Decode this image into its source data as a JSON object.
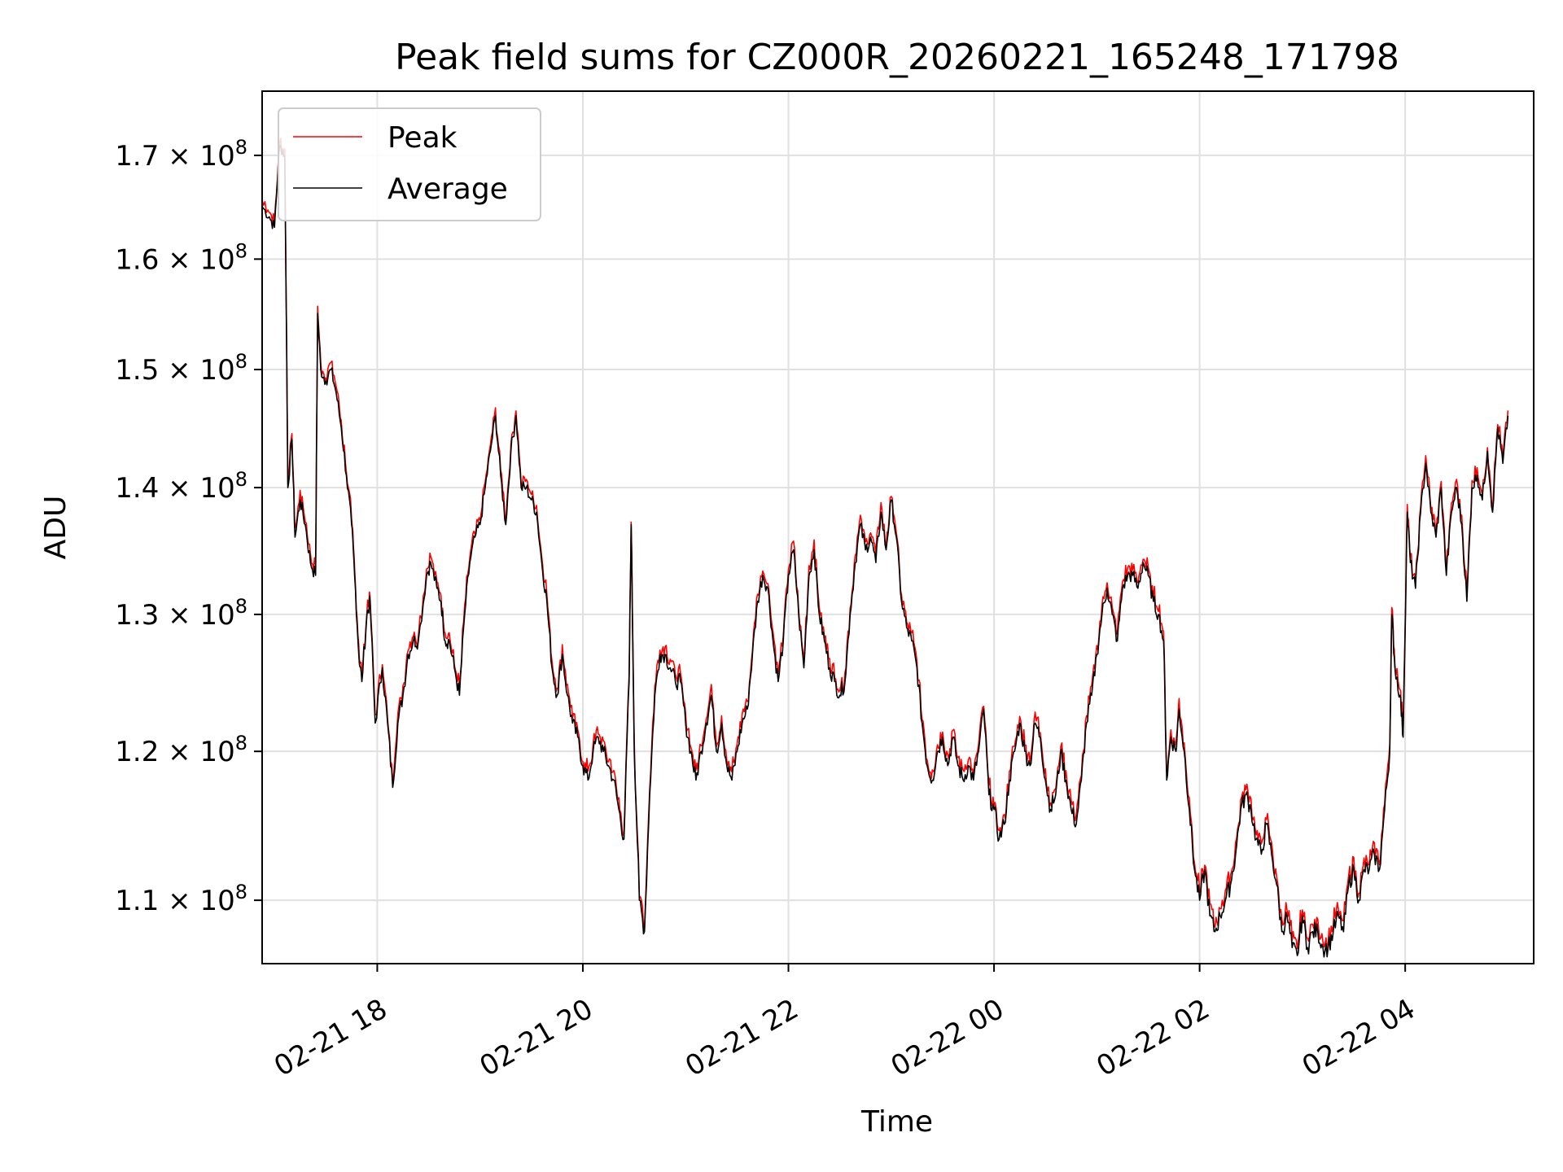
{
  "chart_data": {
    "type": "line",
    "title": "Peak field sums for CZ000R_20260221_165248_171798",
    "xlabel": "Time",
    "ylabel": "ADU",
    "yscale": "log",
    "ylim": [
      106000000,
      176500000
    ],
    "xlim_hours": [
      16.88,
      29.25
    ],
    "grid": true,
    "legend_position": "upper-left",
    "x_ticks": [
      {
        "hour": 18,
        "label": "02-21 18"
      },
      {
        "hour": 20,
        "label": "02-21 20"
      },
      {
        "hour": 22,
        "label": "02-21 22"
      },
      {
        "hour": 24,
        "label": "02-22 00"
      },
      {
        "hour": 26,
        "label": "02-22 02"
      },
      {
        "hour": 28,
        "label": "02-22 04"
      }
    ],
    "y_ticks": [
      {
        "value": 110000000,
        "mantissa": "1.1",
        "exp": "8"
      },
      {
        "value": 120000000,
        "mantissa": "1.2",
        "exp": "8"
      },
      {
        "value": 130000000,
        "mantissa": "1.3",
        "exp": "8"
      },
      {
        "value": 140000000,
        "mantissa": "1.4",
        "exp": "8"
      },
      {
        "value": 150000000,
        "mantissa": "1.5",
        "exp": "8"
      },
      {
        "value": 160000000,
        "mantissa": "1.6",
        "exp": "8"
      },
      {
        "value": 170000000,
        "mantissa": "1.7",
        "exp": "8"
      }
    ],
    "series": [
      {
        "name": "Peak",
        "color": "#ff0000",
        "offset": 0.5
      },
      {
        "name": "Average",
        "color": "#000000",
        "offset": 0
      }
    ],
    "average_points_hours_mega": [
      [
        16.88,
        165
      ],
      [
        16.95,
        164
      ],
      [
        17.0,
        163
      ],
      [
        17.05,
        171
      ],
      [
        17.1,
        170
      ],
      [
        17.13,
        140
      ],
      [
        17.17,
        144
      ],
      [
        17.2,
        136
      ],
      [
        17.25,
        139
      ],
      [
        17.3,
        137
      ],
      [
        17.35,
        134
      ],
      [
        17.4,
        133
      ],
      [
        17.42,
        155
      ],
      [
        17.45,
        150
      ],
      [
        17.5,
        149
      ],
      [
        17.55,
        150
      ],
      [
        17.6,
        148
      ],
      [
        17.65,
        145
      ],
      [
        17.7,
        141
      ],
      [
        17.75,
        137
      ],
      [
        17.78,
        133
      ],
      [
        17.82,
        127
      ],
      [
        17.85,
        125
      ],
      [
        17.9,
        130
      ],
      [
        17.93,
        131
      ],
      [
        17.98,
        122
      ],
      [
        18.05,
        126
      ],
      [
        18.1,
        122
      ],
      [
        18.15,
        117.5
      ],
      [
        18.2,
        122
      ],
      [
        18.25,
        124
      ],
      [
        18.3,
        127
      ],
      [
        18.35,
        128
      ],
      [
        18.4,
        128
      ],
      [
        18.48,
        133
      ],
      [
        18.52,
        134
      ],
      [
        18.58,
        132
      ],
      [
        18.62,
        131
      ],
      [
        18.66,
        128
      ],
      [
        18.7,
        128
      ],
      [
        18.75,
        126
      ],
      [
        18.8,
        124
      ],
      [
        18.85,
        130
      ],
      [
        18.9,
        134
      ],
      [
        18.95,
        136
      ],
      [
        19.0,
        137
      ],
      [
        19.05,
        140
      ],
      [
        19.1,
        143
      ],
      [
        19.15,
        146
      ],
      [
        19.2,
        141
      ],
      [
        19.25,
        137
      ],
      [
        19.3,
        143
      ],
      [
        19.35,
        146
      ],
      [
        19.4,
        140
      ],
      [
        19.45,
        140
      ],
      [
        19.5,
        139
      ],
      [
        19.55,
        138
      ],
      [
        19.6,
        134
      ],
      [
        19.65,
        131
      ],
      [
        19.7,
        126
      ],
      [
        19.75,
        124
      ],
      [
        19.8,
        127
      ],
      [
        19.85,
        124
      ],
      [
        19.9,
        122
      ],
      [
        19.95,
        121
      ],
      [
        20.0,
        119
      ],
      [
        20.05,
        118
      ],
      [
        20.1,
        120
      ],
      [
        20.15,
        121
      ],
      [
        20.2,
        120
      ],
      [
        20.25,
        119
      ],
      [
        20.3,
        118
      ],
      [
        20.35,
        116
      ],
      [
        20.4,
        114
      ],
      [
        20.45,
        125
      ],
      [
        20.47,
        137
      ],
      [
        20.5,
        120
      ],
      [
        20.55,
        110
      ],
      [
        20.6,
        108
      ],
      [
        20.65,
        117
      ],
      [
        20.7,
        124
      ],
      [
        20.75,
        127
      ],
      [
        20.8,
        127
      ],
      [
        20.85,
        126
      ],
      [
        20.9,
        125
      ],
      [
        20.95,
        125
      ],
      [
        21.0,
        122
      ],
      [
        21.05,
        120
      ],
      [
        21.1,
        118
      ],
      [
        21.15,
        120
      ],
      [
        21.2,
        122
      ],
      [
        21.25,
        124
      ],
      [
        21.3,
        120
      ],
      [
        21.35,
        122
      ],
      [
        21.4,
        119
      ],
      [
        21.45,
        118
      ],
      [
        21.5,
        120
      ],
      [
        21.55,
        122
      ],
      [
        21.6,
        123
      ],
      [
        21.65,
        127
      ],
      [
        21.7,
        131
      ],
      [
        21.75,
        133
      ],
      [
        21.8,
        132
      ],
      [
        21.85,
        128
      ],
      [
        21.9,
        125
      ],
      [
        21.95,
        128
      ],
      [
        22.0,
        133
      ],
      [
        22.05,
        135
      ],
      [
        22.1,
        130
      ],
      [
        22.15,
        126
      ],
      [
        22.2,
        133
      ],
      [
        22.25,
        135
      ],
      [
        22.3,
        130
      ],
      [
        22.35,
        128
      ],
      [
        22.4,
        126
      ],
      [
        22.45,
        125
      ],
      [
        22.5,
        124
      ],
      [
        22.55,
        125
      ],
      [
        22.6,
        130
      ],
      [
        22.65,
        134
      ],
      [
        22.7,
        137
      ],
      [
        22.75,
        135
      ],
      [
        22.8,
        136
      ],
      [
        22.85,
        134
      ],
      [
        22.9,
        138
      ],
      [
        22.95,
        135
      ],
      [
        23.0,
        139
      ],
      [
        23.05,
        136
      ],
      [
        23.1,
        131
      ],
      [
        23.15,
        129
      ],
      [
        23.2,
        128
      ],
      [
        23.25,
        126
      ],
      [
        23.3,
        122
      ],
      [
        23.35,
        119
      ],
      [
        23.4,
        118
      ],
      [
        23.45,
        120
      ],
      [
        23.5,
        121
      ],
      [
        23.55,
        119
      ],
      [
        23.6,
        121
      ],
      [
        23.65,
        119
      ],
      [
        23.7,
        118
      ],
      [
        23.75,
        119
      ],
      [
        23.8,
        118
      ],
      [
        23.85,
        120
      ],
      [
        23.9,
        123
      ],
      [
        23.95,
        117
      ],
      [
        24.0,
        116
      ],
      [
        24.05,
        114
      ],
      [
        24.1,
        115
      ],
      [
        24.15,
        118
      ],
      [
        24.2,
        120
      ],
      [
        24.25,
        122
      ],
      [
        24.3,
        120
      ],
      [
        24.35,
        119
      ],
      [
        24.4,
        122
      ],
      [
        24.45,
        121
      ],
      [
        24.5,
        118
      ],
      [
        24.55,
        116
      ],
      [
        24.6,
        117
      ],
      [
        24.65,
        120
      ],
      [
        24.7,
        118
      ],
      [
        24.75,
        116
      ],
      [
        24.8,
        115
      ],
      [
        24.85,
        118
      ],
      [
        24.9,
        122
      ],
      [
        24.95,
        124
      ],
      [
        25.0,
        127
      ],
      [
        25.05,
        130
      ],
      [
        25.1,
        132
      ],
      [
        25.15,
        130
      ],
      [
        25.2,
        128
      ],
      [
        25.25,
        132
      ],
      [
        25.3,
        133
      ],
      [
        25.35,
        133
      ],
      [
        25.4,
        132
      ],
      [
        25.45,
        134
      ],
      [
        25.5,
        133
      ],
      [
        25.55,
        131
      ],
      [
        25.6,
        130
      ],
      [
        25.65,
        128
      ],
      [
        25.68,
        118
      ],
      [
        25.72,
        121
      ],
      [
        25.77,
        120
      ],
      [
        25.8,
        123
      ],
      [
        25.85,
        120
      ],
      [
        25.9,
        116
      ],
      [
        25.95,
        112
      ],
      [
        26.0,
        110
      ],
      [
        26.05,
        112
      ],
      [
        26.1,
        109
      ],
      [
        26.15,
        108
      ],
      [
        26.2,
        109
      ],
      [
        26.25,
        110
      ],
      [
        26.3,
        111
      ],
      [
        26.35,
        113
      ],
      [
        26.4,
        116
      ],
      [
        26.45,
        117
      ],
      [
        26.5,
        116
      ],
      [
        26.55,
        114
      ],
      [
        26.6,
        113
      ],
      [
        26.65,
        115
      ],
      [
        26.7,
        113
      ],
      [
        26.75,
        111
      ],
      [
        26.8,
        108
      ],
      [
        26.85,
        109
      ],
      [
        26.9,
        107
      ],
      [
        26.95,
        106.5
      ],
      [
        27.0,
        109
      ],
      [
        27.05,
        107
      ],
      [
        27.1,
        108
      ],
      [
        27.15,
        108
      ],
      [
        27.2,
        107
      ],
      [
        27.25,
        107
      ],
      [
        27.3,
        108
      ],
      [
        27.35,
        109
      ],
      [
        27.4,
        108
      ],
      [
        27.45,
        111
      ],
      [
        27.5,
        112
      ],
      [
        27.55,
        110
      ],
      [
        27.6,
        112
      ],
      [
        27.65,
        112
      ],
      [
        27.7,
        113
      ],
      [
        27.75,
        112
      ],
      [
        27.8,
        116
      ],
      [
        27.85,
        120
      ],
      [
        27.87,
        130
      ],
      [
        27.9,
        126
      ],
      [
        27.95,
        124
      ],
      [
        27.98,
        121
      ],
      [
        28.02,
        138
      ],
      [
        28.05,
        134
      ],
      [
        28.1,
        132
      ],
      [
        28.15,
        138
      ],
      [
        28.2,
        142
      ],
      [
        28.25,
        138
      ],
      [
        28.3,
        136
      ],
      [
        28.35,
        140
      ],
      [
        28.4,
        133
      ],
      [
        28.45,
        138
      ],
      [
        28.5,
        140
      ],
      [
        28.55,
        137
      ],
      [
        28.6,
        131
      ],
      [
        28.65,
        140
      ],
      [
        28.7,
        141
      ],
      [
        28.75,
        139
      ],
      [
        28.8,
        143
      ],
      [
        28.85,
        138
      ],
      [
        28.9,
        145
      ],
      [
        28.95,
        142
      ],
      [
        29.0,
        146
      ]
    ]
  }
}
